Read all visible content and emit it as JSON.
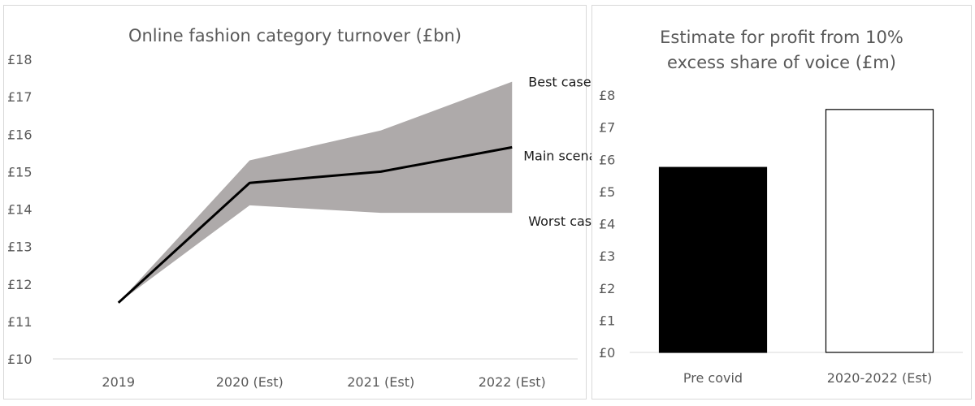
{
  "chart_data": [
    {
      "type": "area",
      "title": "Online fashion category turnover  (£bn)",
      "xlabel": "",
      "ylabel": "",
      "categories": [
        "2019",
        "2020 (Est)",
        "2021 (Est)",
        "2022 (Est)"
      ],
      "ylim": [
        10,
        18
      ],
      "yticks": [
        "£10",
        "£11",
        "£12",
        "£13",
        "£14",
        "£15",
        "£16",
        "£17",
        "£18"
      ],
      "grid": false,
      "series": [
        {
          "name": "Best case",
          "values": [
            11.5,
            15.3,
            16.1,
            17.4
          ]
        },
        {
          "name": "Main scenario",
          "values": [
            11.5,
            14.7,
            15.0,
            15.65
          ]
        },
        {
          "name": "Worst case",
          "values": [
            11.5,
            14.1,
            13.9,
            13.9
          ]
        }
      ],
      "band_color": "#aeaaaa",
      "line_color": "#000000"
    },
    {
      "type": "bar",
      "title": "Estimate for profit from 10% excess share of voice (£m)",
      "title_lines": [
        "Estimate for profit from 10%",
        "excess share of voice (£m)"
      ],
      "xlabel": "",
      "ylabel": "",
      "categories": [
        "Pre covid",
        "2020-2022 (Est)"
      ],
      "values": [
        5.75,
        7.55
      ],
      "ylim": [
        0,
        8
      ],
      "yticks": [
        "£0",
        "£1",
        "£2",
        "£3",
        "£4",
        "£5",
        "£6",
        "£7",
        "£8"
      ],
      "grid": false,
      "bar_colors": [
        "#000000",
        "#ffffff"
      ]
    }
  ]
}
